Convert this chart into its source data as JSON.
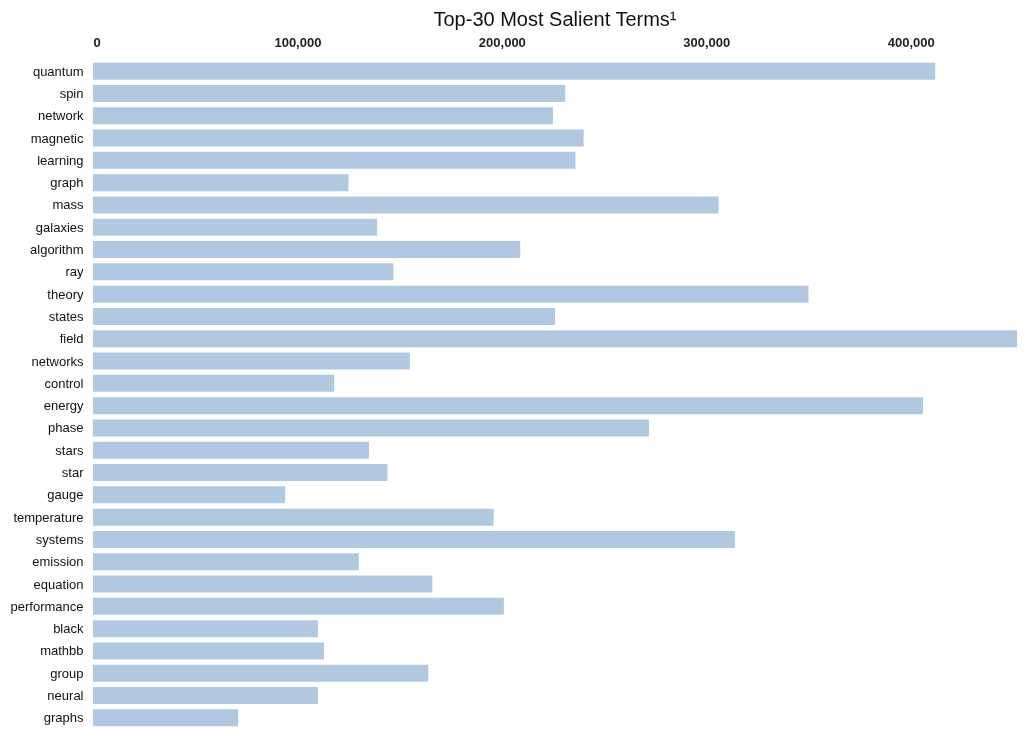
{
  "chart_data": {
    "type": "bar",
    "orientation": "horizontal",
    "title": "Top-30 Most Salient Terms¹",
    "categories": [
      "quantum",
      "spin",
      "network",
      "magnetic",
      "learning",
      "graph",
      "mass",
      "galaxies",
      "algorithm",
      "ray",
      "theory",
      "states",
      "field",
      "networks",
      "control",
      "energy",
      "phase",
      "stars",
      "star",
      "gauge",
      "temperature",
      "systems",
      "emission",
      "equation",
      "performance",
      "black",
      "mathbb",
      "group",
      "neural",
      "graphs"
    ],
    "values": [
      412000,
      231000,
      225000,
      240000,
      236000,
      125000,
      306000,
      139000,
      209000,
      147000,
      350000,
      226000,
      452000,
      155000,
      118000,
      406000,
      272000,
      135000,
      144000,
      94000,
      196000,
      314000,
      130000,
      166000,
      201000,
      110000,
      113000,
      164000,
      110000,
      71000
    ],
    "color": "#b0c8e0",
    "xlim": [
      0,
      452000
    ],
    "xticks": [
      {
        "value": 0,
        "label": "0"
      },
      {
        "value": 100000,
        "label": "100,000"
      },
      {
        "value": 200000,
        "label": "200,000"
      },
      {
        "value": 300000,
        "label": "300,000"
      },
      {
        "value": 400000,
        "label": "400,000"
      }
    ],
    "grid": false
  }
}
